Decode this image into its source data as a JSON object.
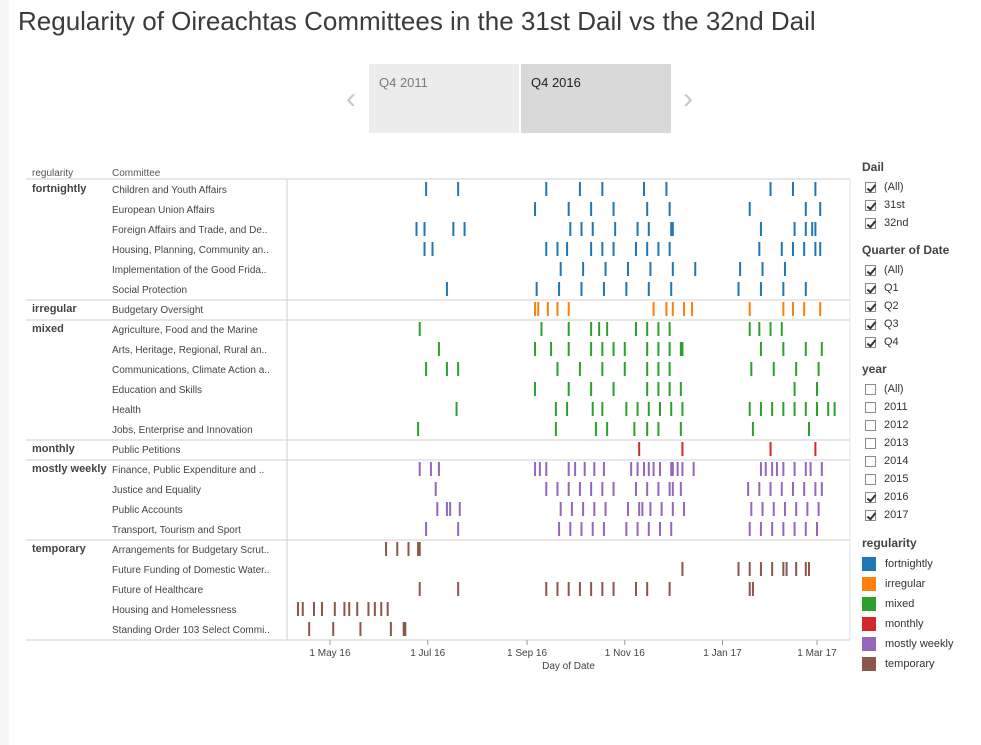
{
  "title": "Regularity of Oireachtas Committees in the 31st Dail vs the 32nd Dail",
  "pager": {
    "prev_glyph": "‹",
    "next_glyph": "›",
    "pages": [
      {
        "label": "Q4 2011",
        "active": false
      },
      {
        "label": "Q4 2016",
        "active": true
      }
    ]
  },
  "filters": {
    "dail": {
      "title": "Dail",
      "options": [
        {
          "label": "(All)",
          "checked": true
        },
        {
          "label": "31st",
          "checked": true
        },
        {
          "label": "32nd",
          "checked": true
        }
      ]
    },
    "quarter": {
      "title": "Quarter of Date",
      "options": [
        {
          "label": "(All)",
          "checked": true
        },
        {
          "label": "Q1",
          "checked": true
        },
        {
          "label": "Q2",
          "checked": true
        },
        {
          "label": "Q3",
          "checked": true
        },
        {
          "label": "Q4",
          "checked": true
        }
      ]
    },
    "year": {
      "title": "year",
      "options": [
        {
          "label": "(All)",
          "checked": false
        },
        {
          "label": "2011",
          "checked": false
        },
        {
          "label": "2012",
          "checked": false
        },
        {
          "label": "2013",
          "checked": false
        },
        {
          "label": "2014",
          "checked": false
        },
        {
          "label": "2015",
          "checked": false
        },
        {
          "label": "2016",
          "checked": true
        },
        {
          "label": "2017",
          "checked": true
        }
      ]
    }
  },
  "chart_data": {
    "type": "scatter",
    "mark": "tick",
    "title": "",
    "column_headers": [
      "regularity",
      "Committee"
    ],
    "xlabel": "Day of Date",
    "xlim": [
      "2016-04-01",
      "2017-03-31"
    ],
    "x_ticks": [
      {
        "label": "1 May 16",
        "date": "2016-05-01"
      },
      {
        "label": "1 Jul 16",
        "date": "2016-07-01"
      },
      {
        "label": "1 Sep 16",
        "date": "2016-09-01"
      },
      {
        "label": "1 Nov 16",
        "date": "2016-11-01"
      },
      {
        "label": "1 Jan 17",
        "date": "2017-01-01"
      },
      {
        "label": "1 Mar 17",
        "date": "2017-03-01"
      }
    ],
    "legend": {
      "title": "regularity",
      "placement": "right",
      "items": [
        {
          "name": "fortnightly",
          "color": "#1f77b4"
        },
        {
          "name": "irregular",
          "color": "#ff7f0e"
        },
        {
          "name": "mixed",
          "color": "#2ca02c"
        },
        {
          "name": "monthly",
          "color": "#d62728"
        },
        {
          "name": "mostly weekly",
          "color": "#9467bd"
        },
        {
          "name": "temporary",
          "color": "#8c564b"
        }
      ]
    },
    "groups": [
      {
        "regularity": "fortnightly",
        "rows": [
          {
            "committee": "Children and Youth Affairs",
            "dates": [
              "2016-06-30",
              "2016-07-20",
              "2016-09-13",
              "2016-10-04",
              "2016-10-18",
              "2016-11-13",
              "2016-11-27",
              "2017-01-31",
              "2017-02-14",
              "2017-02-28"
            ]
          },
          {
            "committee": "European Union Affairs",
            "dates": [
              "2016-09-06",
              "2016-09-27",
              "2016-10-11",
              "2016-10-25",
              "2016-11-15",
              "2016-11-29",
              "2017-01-18",
              "2017-02-22",
              "2017-03-03"
            ]
          },
          {
            "committee": "Foreign Affairs and Trade, and De..",
            "dates": [
              "2016-06-24",
              "2016-06-29",
              "2016-07-17",
              "2016-07-24",
              "2016-09-28",
              "2016-10-05",
              "2016-10-12",
              "2016-10-26",
              "2016-11-09",
              "2016-11-16",
              "2016-11-30",
              "2016-12-01",
              "2017-01-25",
              "2017-02-15",
              "2017-02-22",
              "2017-02-26",
              "2017-02-28"
            ]
          },
          {
            "committee": "Housing, Planning, Community an..",
            "dates": [
              "2016-06-29",
              "2016-07-04",
              "2016-09-13",
              "2016-09-20",
              "2016-09-26",
              "2016-10-11",
              "2016-10-18",
              "2016-10-25",
              "2016-11-08",
              "2016-11-15",
              "2016-11-22",
              "2016-11-29",
              "2017-01-24",
              "2017-02-07",
              "2017-02-14",
              "2017-02-21",
              "2017-02-28",
              "2017-03-03"
            ]
          },
          {
            "committee": "Implementation of the Good Frida..",
            "dates": [
              "2016-09-22",
              "2016-10-06",
              "2016-10-20",
              "2016-11-03",
              "2016-11-17",
              "2016-12-01",
              "2016-12-15",
              "2017-01-12",
              "2017-01-26",
              "2017-02-09"
            ]
          },
          {
            "committee": "Social Protection",
            "dates": [
              "2016-07-13",
              "2016-09-07",
              "2016-09-21",
              "2016-10-05",
              "2016-10-19",
              "2016-11-02",
              "2016-11-16",
              "2016-11-30",
              "2017-01-11",
              "2017-01-25",
              "2017-02-08",
              "2017-02-22"
            ]
          }
        ]
      },
      {
        "regularity": "irregular",
        "rows": [
          {
            "committee": "Budgetary Oversight",
            "dates": [
              "2016-09-06",
              "2016-09-08",
              "2016-09-14",
              "2016-09-20",
              "2016-09-27",
              "2016-11-19",
              "2016-11-27",
              "2016-12-01",
              "2016-12-08",
              "2016-12-13",
              "2017-01-18",
              "2017-02-08",
              "2017-02-14",
              "2017-02-21",
              "2017-03-03"
            ]
          }
        ]
      },
      {
        "regularity": "mixed",
        "rows": [
          {
            "committee": "Agriculture, Food and the Marine",
            "dates": [
              "2016-06-26",
              "2016-09-10",
              "2016-09-27",
              "2016-10-11",
              "2016-10-16",
              "2016-10-21",
              "2016-11-08",
              "2016-11-15",
              "2016-11-22",
              "2016-11-29",
              "2017-01-18",
              "2017-01-24",
              "2017-01-31",
              "2017-02-07"
            ]
          },
          {
            "committee": "Arts, Heritage, Regional, Rural an..",
            "dates": [
              "2016-07-08",
              "2016-09-06",
              "2016-09-16",
              "2016-09-27",
              "2016-10-11",
              "2016-10-18",
              "2016-10-25",
              "2016-11-01",
              "2016-11-15",
              "2016-11-22",
              "2016-11-29",
              "2016-12-06",
              "2016-12-07",
              "2017-01-25",
              "2017-02-08",
              "2017-02-22",
              "2017-03-04"
            ]
          },
          {
            "committee": "Communications, Climate Action a..",
            "dates": [
              "2016-06-30",
              "2016-07-13",
              "2016-07-20",
              "2016-09-20",
              "2016-10-04",
              "2016-10-18",
              "2016-11-01",
              "2016-11-15",
              "2016-11-22",
              "2016-11-29",
              "2017-01-19",
              "2017-02-02",
              "2017-02-16",
              "2017-03-02"
            ]
          },
          {
            "committee": "Education and Skills",
            "dates": [
              "2016-09-06",
              "2016-09-27",
              "2016-10-11",
              "2016-10-25",
              "2016-11-15",
              "2016-11-22",
              "2016-11-29",
              "2016-12-06",
              "2017-02-15",
              "2017-03-01"
            ]
          },
          {
            "committee": "Health",
            "dates": [
              "2016-07-19",
              "2016-09-19",
              "2016-09-26",
              "2016-10-12",
              "2016-10-18",
              "2016-11-02",
              "2016-11-09",
              "2016-11-16",
              "2016-11-23",
              "2016-11-30",
              "2016-12-07",
              "2017-01-18",
              "2017-01-25",
              "2017-02-01",
              "2017-02-08",
              "2017-02-15",
              "2017-02-22",
              "2017-03-01",
              "2017-03-08",
              "2017-03-12"
            ]
          },
          {
            "committee": "Jobs, Enterprise and Innovation",
            "dates": [
              "2016-06-25",
              "2016-09-19",
              "2016-10-14",
              "2016-10-21",
              "2016-11-07",
              "2016-11-15",
              "2016-11-22",
              "2016-12-06",
              "2017-01-20",
              "2017-02-24"
            ]
          }
        ]
      },
      {
        "regularity": "monthly",
        "rows": [
          {
            "committee": "Public Petitions",
            "dates": [
              "2016-11-10",
              "2016-12-07",
              "2017-01-31",
              "2017-02-28"
            ]
          }
        ]
      },
      {
        "regularity": "mostly weekly",
        "rows": [
          {
            "committee": "Finance, Public Expenditure and ..",
            "dates": [
              "2016-06-26",
              "2016-07-03",
              "2016-07-08",
              "2016-09-06",
              "2016-09-09",
              "2016-09-13",
              "2016-09-27",
              "2016-10-01",
              "2016-10-07",
              "2016-10-13",
              "2016-10-19",
              "2016-11-05",
              "2016-11-09",
              "2016-11-13",
              "2016-11-16",
              "2016-11-19",
              "2016-11-23",
              "2016-11-30",
              "2016-12-01",
              "2016-12-04",
              "2016-12-07",
              "2016-12-14",
              "2017-01-25",
              "2017-01-28",
              "2017-02-01",
              "2017-02-04",
              "2017-02-08",
              "2017-02-15",
              "2017-02-22",
              "2017-02-25",
              "2017-03-04"
            ]
          },
          {
            "committee": "Justice and Equality",
            "dates": [
              "2016-07-06",
              "2016-09-13",
              "2016-09-20",
              "2016-09-27",
              "2016-10-04",
              "2016-10-11",
              "2016-10-18",
              "2016-10-25",
              "2016-11-08",
              "2016-11-15",
              "2016-11-22",
              "2016-11-29",
              "2016-12-01",
              "2016-12-06",
              "2017-01-17",
              "2017-01-24",
              "2017-01-31",
              "2017-02-07",
              "2017-02-14",
              "2017-02-21",
              "2017-02-28",
              "2017-03-04"
            ]
          },
          {
            "committee": "Public Accounts",
            "dates": [
              "2016-07-07",
              "2016-07-13",
              "2016-07-15",
              "2016-07-21",
              "2016-09-22",
              "2016-09-29",
              "2016-10-06",
              "2016-10-13",
              "2016-10-20",
              "2016-11-03",
              "2016-11-10",
              "2016-11-12",
              "2016-11-17",
              "2016-11-24",
              "2016-12-01",
              "2016-12-08",
              "2017-01-19",
              "2017-01-26",
              "2017-02-02",
              "2017-02-09",
              "2017-02-16",
              "2017-02-23",
              "2017-03-02"
            ]
          },
          {
            "committee": "Transport, Tourism and Sport",
            "dates": [
              "2016-06-30",
              "2016-07-20",
              "2016-09-21",
              "2016-09-28",
              "2016-10-05",
              "2016-10-12",
              "2016-10-19",
              "2016-11-02",
              "2016-11-09",
              "2016-11-16",
              "2016-11-23",
              "2016-11-30",
              "2017-01-18",
              "2017-01-25",
              "2017-02-01",
              "2017-02-08",
              "2017-02-15",
              "2017-02-22",
              "2017-03-01"
            ]
          }
        ]
      },
      {
        "regularity": "temporary",
        "rows": [
          {
            "committee": "Arrangements for Budgetary Scrut..",
            "dates": [
              "2016-06-05",
              "2016-06-12",
              "2016-06-19",
              "2016-06-25",
              "2016-06-26"
            ]
          },
          {
            "committee": "Future Funding of Domestic Water..",
            "dates": [
              "2016-12-07",
              "2017-01-11",
              "2017-01-18",
              "2017-01-25",
              "2017-02-01",
              "2017-02-08",
              "2017-02-10",
              "2017-02-16",
              "2017-02-22",
              "2017-02-24"
            ]
          },
          {
            "committee": "Future of Healthcare",
            "dates": [
              "2016-06-26",
              "2016-07-20",
              "2016-09-13",
              "2016-09-20",
              "2016-09-27",
              "2016-10-04",
              "2016-10-11",
              "2016-10-18",
              "2016-10-25",
              "2016-11-08",
              "2016-11-15",
              "2016-11-29",
              "2017-01-18",
              "2017-01-20"
            ]
          },
          {
            "committee": "Housing and Homelessness",
            "dates": [
              "2016-04-11",
              "2016-04-14",
              "2016-04-21",
              "2016-04-26",
              "2016-05-04",
              "2016-05-10",
              "2016-05-13",
              "2016-05-18",
              "2016-05-25",
              "2016-05-29",
              "2016-06-02",
              "2016-06-06"
            ]
          },
          {
            "committee": "Standing Order 103 Select Commi..",
            "dates": [
              "2016-04-18",
              "2016-05-03",
              "2016-05-20",
              "2016-06-08",
              "2016-06-16",
              "2016-06-17"
            ]
          }
        ]
      }
    ]
  }
}
